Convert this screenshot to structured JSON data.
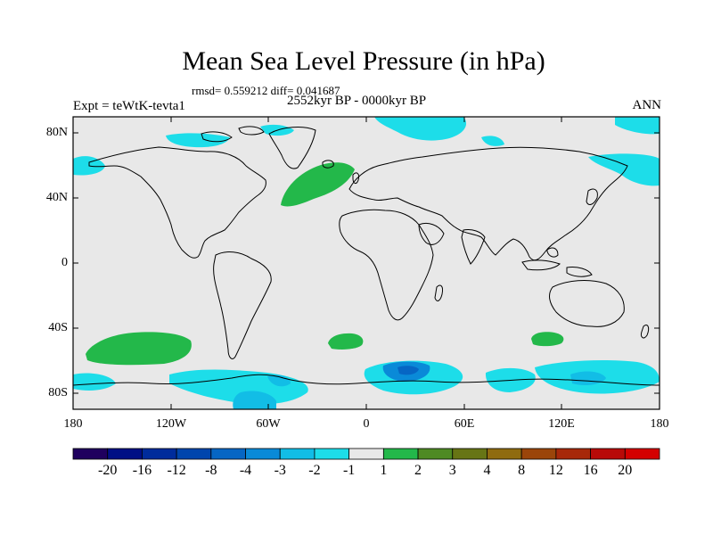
{
  "title": "Mean Sea Level Pressure (in hPa)",
  "stats": "rmsd= 0.559212  diff= 0.041687",
  "period": "2552kyr BP - 0000kyr BP",
  "experiment": "Expt = teWtK-tevta1",
  "season": "ANN",
  "lat_labels": [
    "80N",
    "40N",
    "0",
    "40S",
    "80S"
  ],
  "lon_labels": [
    "180",
    "120W",
    "60W",
    "0",
    "60E",
    "120E",
    "180"
  ],
  "colorbar": {
    "colors": [
      "#1f005e",
      "#000f85",
      "#002c9c",
      "#0045ad",
      "#0666c4",
      "#0a8ad8",
      "#12bde6",
      "#1ddde9",
      "#e8e8e8",
      "#23b84a",
      "#4e8a23",
      "#677515",
      "#8f6b0f",
      "#9b450a",
      "#a7280a",
      "#b80a08",
      "#d40000"
    ],
    "labels": [
      "-20",
      "-16",
      "-12",
      "-8",
      "-4",
      "-3",
      "-2",
      "-1",
      "1",
      "2",
      "3",
      "4",
      "8",
      "12",
      "16",
      "20"
    ]
  }
}
